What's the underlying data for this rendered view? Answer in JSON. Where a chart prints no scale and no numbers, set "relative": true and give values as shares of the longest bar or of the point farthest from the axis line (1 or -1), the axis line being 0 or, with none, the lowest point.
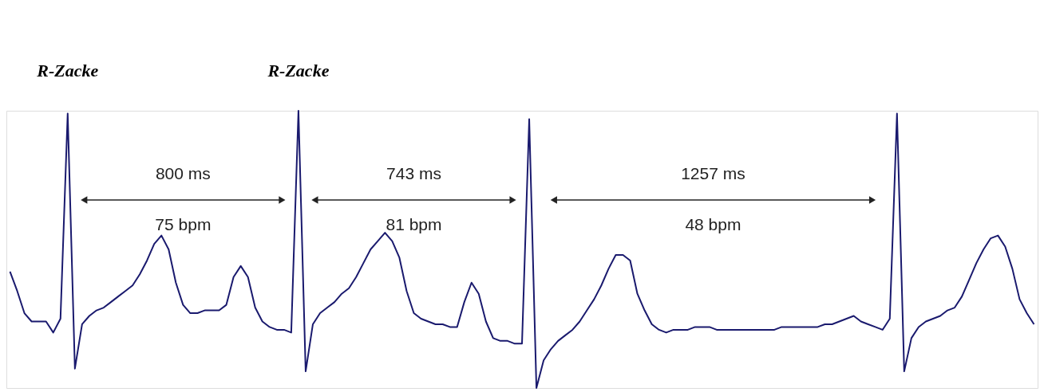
{
  "chart_data": {
    "type": "line",
    "relative": true,
    "marker": "none",
    "line_style": "solid",
    "categories": [
      null,
      null,
      null,
      null,
      null,
      null,
      null,
      null,
      null,
      null,
      null,
      null,
      null,
      null,
      null,
      null,
      null,
      null,
      null,
      null,
      null,
      null,
      null,
      null,
      null,
      null,
      null,
      null,
      null,
      null,
      null,
      null,
      null,
      null,
      null,
      null,
      null,
      null,
      null,
      null,
      null,
      null,
      null,
      null,
      null,
      null,
      null,
      null,
      null,
      null,
      null,
      null,
      null,
      null,
      null,
      null,
      null,
      null,
      null,
      null,
      null,
      null,
      null,
      null,
      null,
      null,
      null,
      null,
      null,
      null,
      null,
      null,
      null,
      null,
      null,
      null,
      null,
      null,
      null,
      null,
      null,
      null,
      null,
      null,
      null,
      null,
      null,
      null,
      null,
      null,
      null,
      null,
      null,
      null,
      null,
      null,
      null,
      null,
      null,
      null,
      null,
      null,
      null,
      null,
      null,
      null,
      null,
      null,
      null,
      null,
      null,
      null,
      null,
      null,
      null,
      null,
      null,
      null,
      null,
      null,
      null,
      null,
      null,
      null,
      null,
      null,
      null,
      null,
      null,
      null,
      null,
      null,
      null,
      null,
      null,
      null,
      null,
      null,
      null,
      null,
      null,
      null,
      null
    ],
    "series": [
      {
        "color": "#1a1a6e",
        "values": [
          0.42,
          0.35,
          0.27,
          0.24,
          0.24,
          0.24,
          0.2,
          0.25,
          0.99,
          0.07,
          0.23,
          0.26,
          0.28,
          0.29,
          0.31,
          0.33,
          0.35,
          0.37,
          0.41,
          0.46,
          0.52,
          0.55,
          0.5,
          0.38,
          0.3,
          0.27,
          0.27,
          0.28,
          0.28,
          0.28,
          0.3,
          0.4,
          0.44,
          0.4,
          0.29,
          0.24,
          0.22,
          0.21,
          0.21,
          0.2,
          1.0,
          0.06,
          0.23,
          0.27,
          0.29,
          0.31,
          0.34,
          0.36,
          0.4,
          0.45,
          0.5,
          0.53,
          0.56,
          0.53,
          0.47,
          0.35,
          0.27,
          0.25,
          0.24,
          0.23,
          0.23,
          0.22,
          0.22,
          0.31,
          0.38,
          0.34,
          0.24,
          0.18,
          0.17,
          0.17,
          0.16,
          0.16,
          0.97,
          0.0,
          0.1,
          0.14,
          0.17,
          0.19,
          0.21,
          0.24,
          0.28,
          0.32,
          0.37,
          0.43,
          0.48,
          0.48,
          0.46,
          0.34,
          0.28,
          0.23,
          0.21,
          0.2,
          0.21,
          0.21,
          0.21,
          0.22,
          0.22,
          0.22,
          0.21,
          0.21,
          0.21,
          0.21,
          0.21,
          0.21,
          0.21,
          0.21,
          0.21,
          0.22,
          0.22,
          0.22,
          0.22,
          0.22,
          0.22,
          0.23,
          0.23,
          0.24,
          0.25,
          0.26,
          0.24,
          0.23,
          0.22,
          0.21,
          0.25,
          0.99,
          0.06,
          0.18,
          0.22,
          0.24,
          0.25,
          0.26,
          0.28,
          0.29,
          0.33,
          0.39,
          0.45,
          0.5,
          0.54,
          0.55,
          0.51,
          0.43,
          0.32,
          0.27,
          0.23
        ]
      }
    ],
    "annotations": [
      "R-Zacke",
      "R-Zacke",
      "800 ms",
      "75 bpm",
      "743 ms",
      "81 bpm",
      "1257 ms",
      "48 bpm"
    ]
  }
}
